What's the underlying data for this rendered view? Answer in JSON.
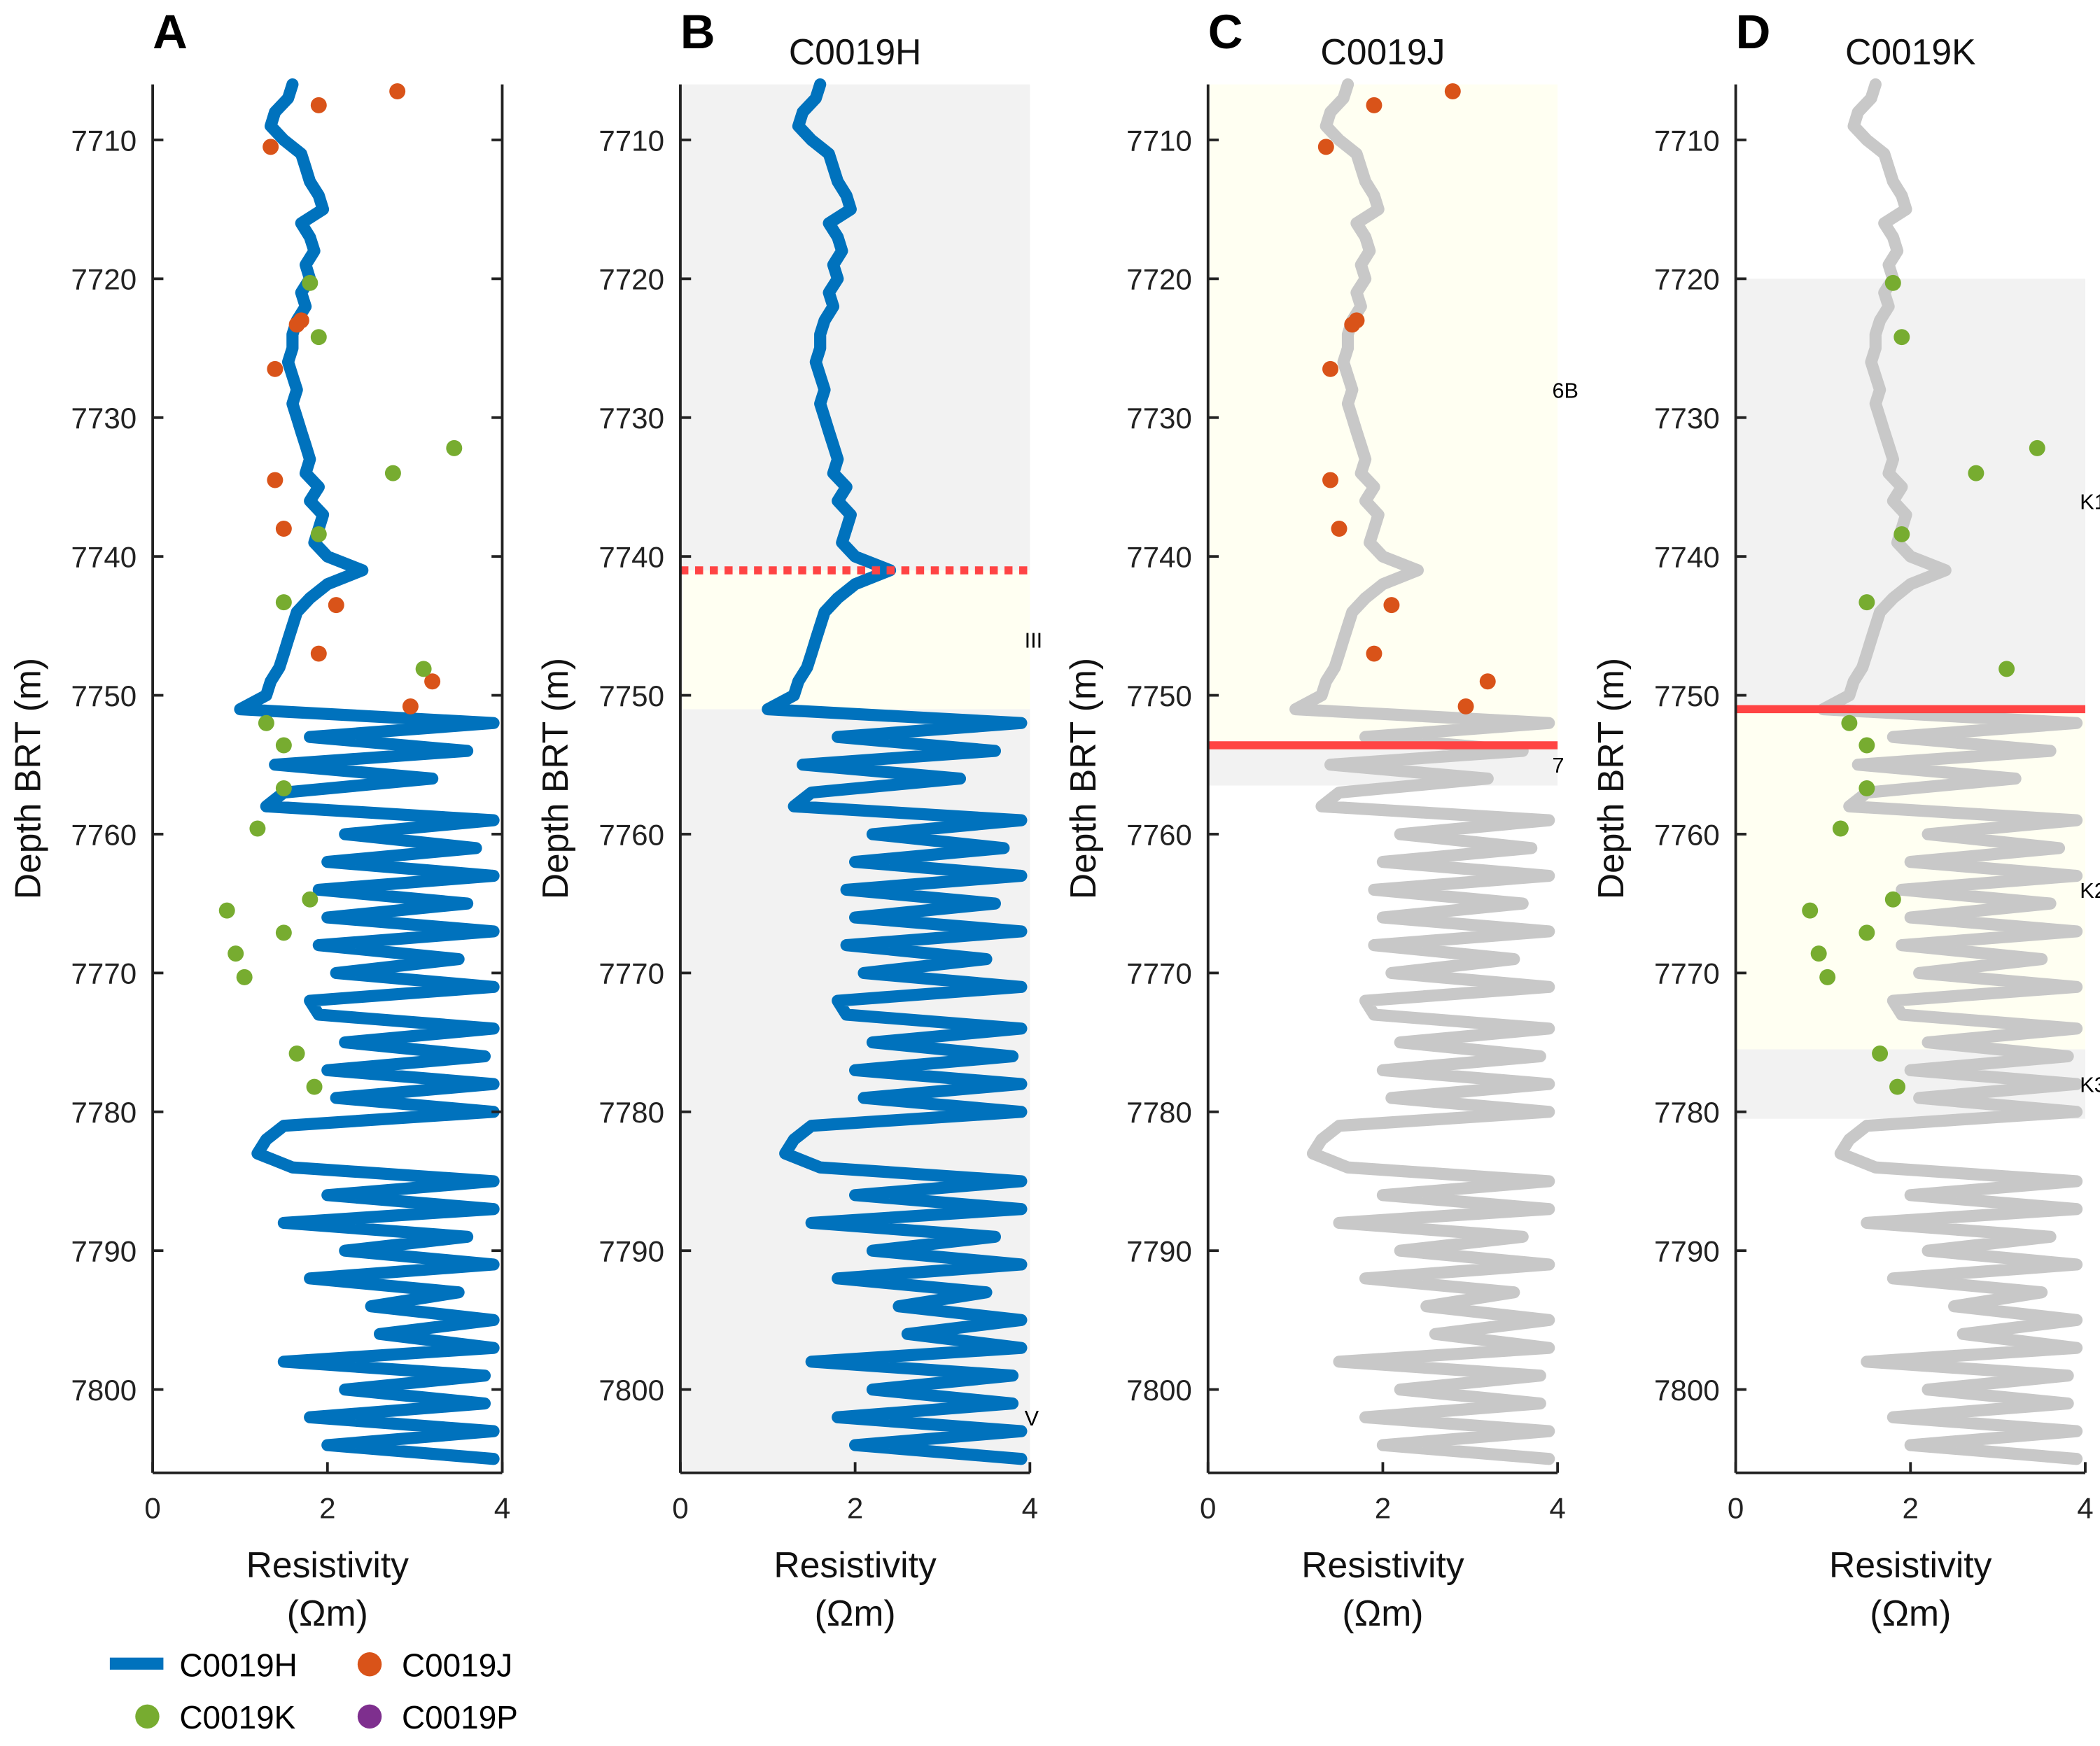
{
  "chart_data": [
    {
      "panel": "A",
      "title": "",
      "type": "line+scatter",
      "xlabel": "Resistivity (Ωm)",
      "ylabel": "Depth BRT (m)",
      "xlim": [
        0,
        4
      ],
      "ylim": [
        7806,
        7706
      ],
      "y_inverted": true,
      "line_series": "C0019H",
      "line_color": "#0072BD",
      "point_series": [
        "C0019J",
        "C0019K"
      ],
      "right_spine": true
    },
    {
      "panel": "B",
      "title": "C0019H",
      "type": "line",
      "xlabel": "Resistivity (Ωm)",
      "ylabel": "Depth BRT (m)",
      "xlim": [
        0,
        4
      ],
      "ylim": [
        7806,
        7706
      ],
      "line_series": "C0019H",
      "line_color": "#0072BD",
      "point_series": [],
      "zones": [
        {
          "from": 7706,
          "to": 7741,
          "fill": "#f2f2f2"
        },
        {
          "from": 7741,
          "to": 7751,
          "fill": "#fffff2",
          "label": "III",
          "label_depth": 7746
        },
        {
          "from": 7751,
          "to": 7806,
          "fill": "#f2f2f2",
          "label": "V",
          "label_depth": 7802
        }
      ],
      "boundary": {
        "depth": 7741,
        "style": "dotted",
        "color": "#ff4444"
      }
    },
    {
      "panel": "C",
      "title": "C0019J",
      "type": "line+scatter",
      "xlabel": "Resistivity (Ωm)",
      "ylabel": "Depth BRT (m)",
      "xlim": [
        0,
        4
      ],
      "ylim": [
        7806,
        7706
      ],
      "line_series": "C0019H",
      "line_color": "#c8c8c8",
      "point_series": [
        "C0019J"
      ],
      "zones": [
        {
          "from": 7706,
          "to": 7753.6,
          "fill": "#fffff2",
          "label": "6B",
          "label_depth": 7728
        },
        {
          "from": 7753.6,
          "to": 7756.5,
          "fill": "#f2f2f2",
          "label": "7",
          "label_depth": 7755
        }
      ],
      "boundary": {
        "depth": 7753.6,
        "style": "solid",
        "color": "#ff4444"
      }
    },
    {
      "panel": "D",
      "title": "C0019K",
      "type": "line+scatter",
      "xlabel": "Resistivity (Ωm)",
      "ylabel": "Depth BRT (m)",
      "xlim": [
        0,
        4
      ],
      "ylim": [
        7806,
        7706
      ],
      "line_series": "C0019H",
      "line_color": "#c8c8c8",
      "point_series": [
        "C0019K"
      ],
      "zones": [
        {
          "from": 7720,
          "to": 7751,
          "fill": "#f2f2f2",
          "label": "K1",
          "label_depth": 7736
        },
        {
          "from": 7751,
          "to": 7775.5,
          "fill": "#fffff2",
          "label": "K2",
          "label_depth": 7764
        },
        {
          "from": 7775.5,
          "to": 7780.5,
          "fill": "#f2f2f2",
          "label": "K3",
          "label_depth": 7778
        }
      ],
      "boundary": {
        "depth": 7751,
        "style": "solid",
        "color": "#ff4444"
      }
    }
  ],
  "xticks": [
    0,
    2,
    4
  ],
  "yticks": [
    7710,
    7720,
    7730,
    7740,
    7750,
    7760,
    7770,
    7780,
    7790,
    7800
  ],
  "xlabel_line1": "Resistivity",
  "xlabel_line2": "(Ωm)",
  "ylabel": "Depth BRT (m)",
  "series": {
    "C0019H": {
      "color": "#0072BD",
      "depth_start": 7706,
      "depth_step": 1,
      "values": [
        1.6,
        1.55,
        1.4,
        1.35,
        1.5,
        1.7,
        1.75,
        1.8,
        1.9,
        1.95,
        1.7,
        1.8,
        1.85,
        1.75,
        1.8,
        1.7,
        1.75,
        1.65,
        1.6,
        1.6,
        1.55,
        1.6,
        1.65,
        1.6,
        1.65,
        1.7,
        1.75,
        1.8,
        1.75,
        1.9,
        1.8,
        1.95,
        1.9,
        1.85,
        2.0,
        2.4,
        2.0,
        1.8,
        1.65,
        1.6,
        1.55,
        1.5,
        1.45,
        1.35,
        1.3,
        1.0,
        3.9,
        1.8,
        3.6,
        1.4,
        3.2,
        1.5,
        1.3,
        3.9,
        2.2,
        3.7,
        2.0,
        3.9,
        1.9,
        3.6,
        2.0,
        3.9,
        1.9,
        3.5,
        2.1,
        3.9,
        1.8,
        1.9,
        3.9,
        2.2,
        3.8,
        2.0,
        3.9,
        2.1,
        3.9,
        1.5,
        1.3,
        1.2,
        1.6,
        3.9,
        2.0,
        3.9,
        1.5,
        3.6,
        2.2,
        3.9,
        1.8,
        3.5,
        2.5,
        3.9,
        2.6,
        3.9,
        1.5,
        3.8,
        2.2,
        3.8,
        1.8,
        3.9,
        2.0,
        3.9
      ]
    },
    "C0019J": {
      "color": "#D95319",
      "points": [
        [
          2.8,
          7706.5
        ],
        [
          1.9,
          7707.5
        ],
        [
          1.35,
          7710.5
        ],
        [
          1.7,
          7723
        ],
        [
          1.65,
          7723.3
        ],
        [
          1.4,
          7726.5
        ],
        [
          1.4,
          7734.5
        ],
        [
          1.5,
          7738
        ],
        [
          2.1,
          7743.5
        ],
        [
          1.9,
          7747
        ],
        [
          3.2,
          7749
        ],
        [
          2.95,
          7750.8
        ]
      ]
    },
    "C0019K": {
      "color": "#77AC30",
      "points": [
        [
          1.8,
          7720.3
        ],
        [
          1.9,
          7724.2
        ],
        [
          3.45,
          7732.2
        ],
        [
          2.75,
          7734
        ],
        [
          1.9,
          7738.4
        ],
        [
          1.5,
          7743.3
        ],
        [
          3.1,
          7748.1
        ],
        [
          1.3,
          7752
        ],
        [
          1.5,
          7753.6
        ],
        [
          1.5,
          7756.7
        ],
        [
          1.2,
          7759.6
        ],
        [
          1.8,
          7764.7
        ],
        [
          0.85,
          7765.5
        ],
        [
          1.5,
          7767.1
        ],
        [
          0.95,
          7768.6
        ],
        [
          1.05,
          7770.3
        ],
        [
          1.65,
          7775.8
        ],
        [
          1.85,
          7778.2
        ]
      ]
    },
    "C0019P": {
      "color": "#7E2F8E",
      "points": []
    }
  },
  "legend": {
    "placement": "bottom-left",
    "entries": [
      {
        "label": "C0019H",
        "marker": "line",
        "color": "#0072BD"
      },
      {
        "label": "C0019J",
        "marker": "dot",
        "color": "#D95319"
      },
      {
        "label": "C0019K",
        "marker": "dot",
        "color": "#77AC30"
      },
      {
        "label": "C0019P",
        "marker": "dot",
        "color": "#7E2F8E"
      }
    ]
  }
}
